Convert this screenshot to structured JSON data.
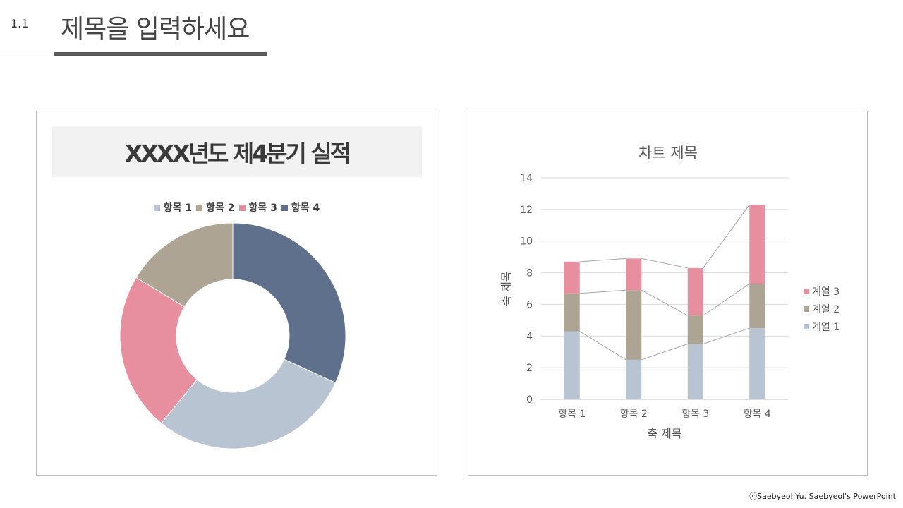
{
  "slide": {
    "number": "1.1",
    "title": "제목을 입력하세요",
    "footer": "ⓒSaebyeol Yu.  Saebyeol's PowerPoint"
  },
  "colors": {
    "item1": "#b9c4d2",
    "item2": "#ada494",
    "item3": "#e88f9f",
    "item4": "#5e708b"
  },
  "chart_data": [
    {
      "type": "pie",
      "donut": true,
      "title": "XXXX년도 제4분기 실적",
      "legend_position": "top",
      "categories": [
        "항목 1",
        "항목 2",
        "항목 3",
        "항목 4"
      ],
      "legend_labels": [
        "항목 1",
        "항목 2",
        "항목 3",
        "항목 4"
      ],
      "values": [
        32,
        18,
        25,
        35
      ],
      "colors": [
        "#b9c4d2",
        "#ada494",
        "#e88f9f",
        "#5e708b"
      ],
      "start_order": [
        4,
        1,
        3,
        2
      ]
    },
    {
      "type": "bar",
      "stacked": true,
      "title": "차트 제목",
      "xlabel": "축 제목",
      "ylabel": "축 제목",
      "categories": [
        "항목 1",
        "항목 2",
        "항목 3",
        "항목 4"
      ],
      "series": [
        {
          "name": "계열 1",
          "values": [
            4.3,
            2.5,
            3.5,
            4.5
          ],
          "color": "#b9c4d2"
        },
        {
          "name": "계열 2",
          "values": [
            2.4,
            4.4,
            1.8,
            2.8
          ],
          "color": "#ada494"
        },
        {
          "name": "계열 3",
          "values": [
            2.0,
            2.0,
            3.0,
            5.0
          ],
          "color": "#e88f9f"
        }
      ],
      "ylim": [
        0,
        14
      ],
      "yticks": [
        0,
        2,
        4,
        6,
        8,
        10,
        12,
        14
      ],
      "grid": true,
      "legend_position": "right",
      "series_lines": true
    }
  ]
}
